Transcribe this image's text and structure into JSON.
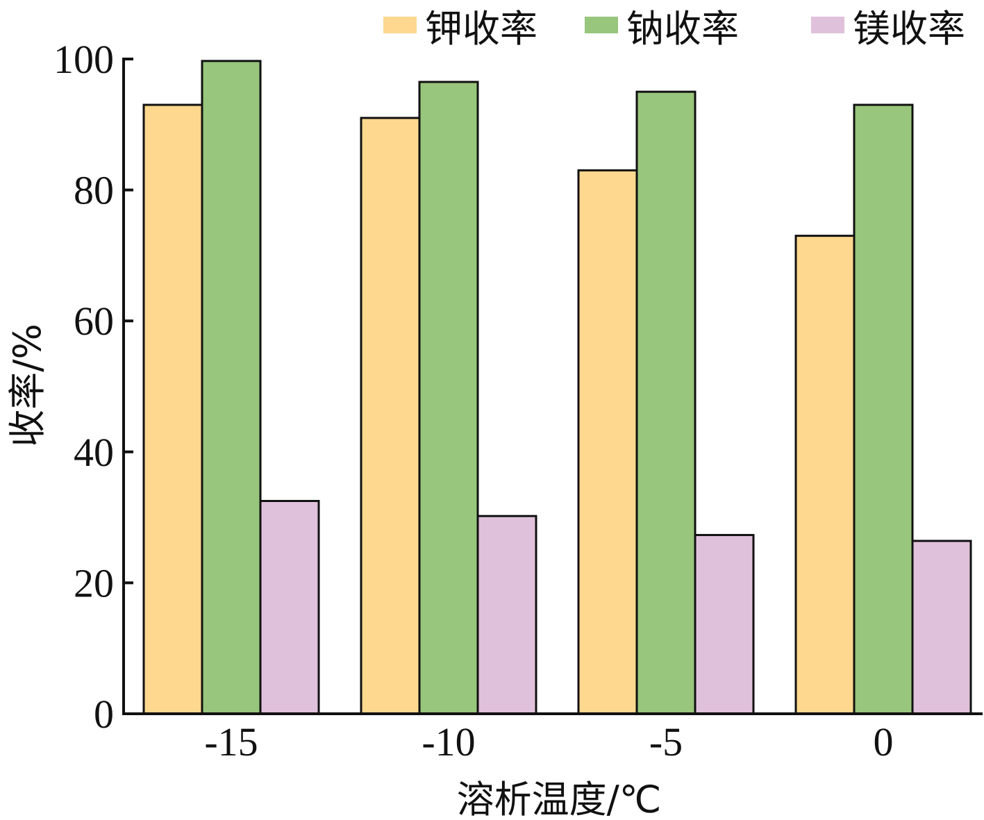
{
  "chart_data": {
    "type": "bar",
    "title": "",
    "xlabel": "溶析温度/℃",
    "ylabel": "收率/%",
    "categories": [
      "-15",
      "-10",
      "-5",
      "0"
    ],
    "ylim": [
      0,
      100
    ],
    "yticks": [
      0,
      20,
      40,
      60,
      80,
      100
    ],
    "grid": false,
    "legend_position": "top-right",
    "series": [
      {
        "name": "钾收率",
        "color": "#FDD88E",
        "values": [
          93,
          91,
          83,
          73
        ]
      },
      {
        "name": "钠收率",
        "color": "#98C67C",
        "values": [
          99.7,
          96.5,
          95,
          93
        ]
      },
      {
        "name": "镁收率",
        "color": "#E0C1DB",
        "values": [
          32.5,
          30.2,
          27.3,
          26.4
        ]
      }
    ]
  }
}
